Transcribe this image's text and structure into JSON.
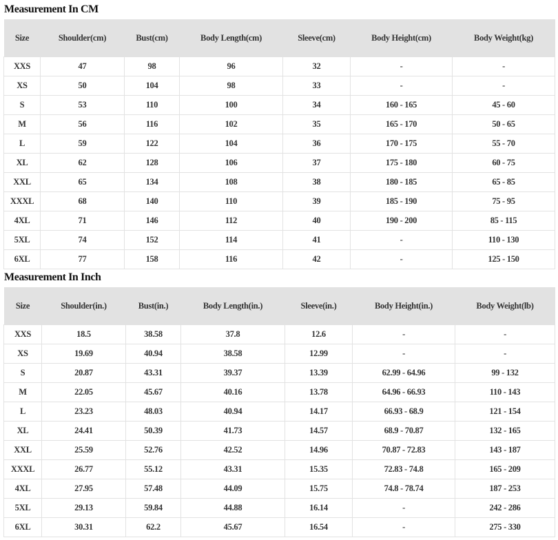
{
  "cm": {
    "title": "Measurement In CM",
    "headers": [
      "Size",
      "Shoulder(cm)",
      "Bust(cm)",
      "Body Length(cm)",
      "Sleeve(cm)",
      "Body Height(cm)",
      "Body Weight(kg)"
    ],
    "rows": [
      [
        "XXS",
        "47",
        "98",
        "96",
        "32",
        "-",
        "-"
      ],
      [
        "XS",
        "50",
        "104",
        "98",
        "33",
        "-",
        "-"
      ],
      [
        "S",
        "53",
        "110",
        "100",
        "34",
        "160 - 165",
        "45 - 60"
      ],
      [
        "M",
        "56",
        "116",
        "102",
        "35",
        "165 - 170",
        "50 - 65"
      ],
      [
        "L",
        "59",
        "122",
        "104",
        "36",
        "170 - 175",
        "55 - 70"
      ],
      [
        "XL",
        "62",
        "128",
        "106",
        "37",
        "175 - 180",
        "60 - 75"
      ],
      [
        "XXL",
        "65",
        "134",
        "108",
        "38",
        "180 - 185",
        "65 - 85"
      ],
      [
        "XXXL",
        "68",
        "140",
        "110",
        "39",
        "185 - 190",
        "75 - 95"
      ],
      [
        "4XL",
        "71",
        "146",
        "112",
        "40",
        "190 - 200",
        "85 - 115"
      ],
      [
        "5XL",
        "74",
        "152",
        "114",
        "41",
        "-",
        "110 - 130"
      ],
      [
        "6XL",
        "77",
        "158",
        "116",
        "42",
        "-",
        "125 - 150"
      ]
    ]
  },
  "inch": {
    "title": "Measurement In Inch",
    "headers": [
      "Size",
      "Shoulder(in.)",
      "Bust(in.)",
      "Body Length(in.)",
      "Sleeve(in.)",
      "Body Height(in.)",
      "Body Weight(lb)"
    ],
    "rows": [
      [
        "XXS",
        "18.5",
        "38.58",
        "37.8",
        "12.6",
        "-",
        "-"
      ],
      [
        "XS",
        "19.69",
        "40.94",
        "38.58",
        "12.99",
        "-",
        "-"
      ],
      [
        "S",
        "20.87",
        "43.31",
        "39.37",
        "13.39",
        "62.99 - 64.96",
        "99 - 132"
      ],
      [
        "M",
        "22.05",
        "45.67",
        "40.16",
        "13.78",
        "64.96 - 66.93",
        "110 - 143"
      ],
      [
        "L",
        "23.23",
        "48.03",
        "40.94",
        "14.17",
        "66.93 - 68.9",
        "121 - 154"
      ],
      [
        "XL",
        "24.41",
        "50.39",
        "41.73",
        "14.57",
        "68.9 - 70.87",
        "132 - 165"
      ],
      [
        "XXL",
        "25.59",
        "52.76",
        "42.52",
        "14.96",
        "70.87 - 72.83",
        "143 - 187"
      ],
      [
        "XXXL",
        "26.77",
        "55.12",
        "43.31",
        "15.35",
        "72.83 - 74.8",
        "165 - 209"
      ],
      [
        "4XL",
        "27.95",
        "57.48",
        "44.09",
        "15.75",
        "74.8 - 78.74",
        "187 - 253"
      ],
      [
        "5XL",
        "29.13",
        "59.84",
        "44.88",
        "16.14",
        "-",
        "242 - 286"
      ],
      [
        "6XL",
        "30.31",
        "62.2",
        "45.67",
        "16.54",
        "-",
        "275 - 330"
      ]
    ]
  }
}
